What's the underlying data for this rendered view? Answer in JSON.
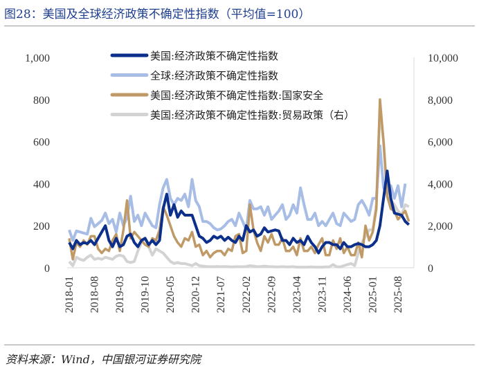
{
  "title": "图28：美国及全球经济政策不确定性指数（平均值=100）",
  "source": "资料来源：Wind，中国银河证券研究院",
  "chart_data": {
    "type": "line",
    "xlabel": "",
    "ylabel": "",
    "ylim_left": [
      0,
      1000
    ],
    "ylim_right": [
      0,
      10000
    ],
    "yticks_left": [
      "0",
      "200",
      "400",
      "600",
      "800",
      "1,000"
    ],
    "yticks_right": [
      "0",
      "2,000",
      "4,000",
      "6,000",
      "8,000",
      "10,000"
    ],
    "xticks": [
      "2018-01",
      "2018-08",
      "2019-03",
      "2019-10",
      "2020-05",
      "2020-12",
      "2021-07",
      "2022-02",
      "2022-09",
      "2023-04",
      "2023-11",
      "2024-06",
      "2025-01",
      "2025-08"
    ],
    "x_start": "2018-01",
    "frequency": "monthly",
    "grid": false,
    "legend_position": "top",
    "series": [
      {
        "name": "美国:经济政策不确定性指数",
        "axis": "left",
        "color": "#0b2f8a",
        "width": 4,
        "values": [
          120,
          90,
          130,
          110,
          120,
          115,
          130,
          110,
          140,
          170,
          200,
          130,
          100,
          140,
          100,
          110,
          150,
          160,
          120,
          100,
          130,
          140,
          110,
          130,
          110,
          130,
          280,
          350,
          250,
          300,
          240,
          270,
          250,
          250,
          250,
          200,
          150,
          140,
          120,
          130,
          150,
          140,
          150,
          130,
          145,
          130,
          120,
          150,
          130,
          200,
          170,
          180,
          150,
          160,
          190,
          170,
          175,
          180,
          175,
          130,
          130,
          110,
          140,
          120,
          130,
          110,
          150,
          120,
          100,
          70,
          100,
          120,
          120,
          110,
          110,
          90,
          120,
          100,
          100,
          110,
          115,
          110,
          100,
          100,
          110,
          130,
          200,
          330,
          460,
          330,
          260,
          255,
          250,
          220,
          205
        ]
      },
      {
        "name": "全球:经济政策不确定性指数",
        "axis": "left",
        "color": "#a8bde6",
        "width": 4,
        "values": [
          180,
          130,
          175,
          170,
          165,
          160,
          235,
          195,
          210,
          225,
          260,
          210,
          230,
          170,
          260,
          200,
          240,
          340,
          220,
          250,
          200,
          260,
          230,
          200,
          190,
          300,
          380,
          420,
          330,
          300,
          330,
          320,
          350,
          290,
          420,
          320,
          290,
          220,
          220,
          210,
          190,
          180,
          185,
          200,
          220,
          230,
          200,
          260,
          220,
          180,
          320,
          280,
          280,
          290,
          250,
          290,
          230,
          250,
          270,
          300,
          230,
          250,
          300,
          260,
          380,
          300,
          230,
          230,
          260,
          200,
          220,
          200,
          230,
          260,
          210,
          200,
          260,
          240,
          220,
          230,
          300,
          320,
          290,
          250,
          330,
          330,
          580,
          380,
          350,
          390,
          330,
          390,
          290,
          400,
          null
        ]
      },
      {
        "name": "美国:经济政策不确定性指数:国家安全",
        "axis": "left",
        "color": "#bf9a66",
        "width": 3.5,
        "values": [
          140,
          40,
          120,
          100,
          130,
          110,
          150,
          150,
          90,
          70,
          90,
          80,
          130,
          160,
          80,
          180,
          320,
          140,
          170,
          150,
          130,
          110,
          100,
          140,
          130,
          180,
          290,
          250,
          200,
          150,
          120,
          100,
          140,
          130,
          170,
          100,
          110,
          60,
          80,
          50,
          70,
          80,
          80,
          60,
          90,
          80,
          150,
          160,
          70,
          80,
          300,
          180,
          120,
          80,
          150,
          120,
          160,
          110,
          110,
          140,
          80,
          80,
          100,
          60,
          140,
          80,
          80,
          100,
          70,
          110,
          140,
          60,
          60,
          130,
          90,
          140,
          70,
          100,
          60,
          60,
          120,
          50,
          200,
          130,
          170,
          280,
          800,
          600,
          340,
          280,
          270,
          230,
          250,
          270,
          220
        ]
      },
      {
        "name": "美国:经济政策不确定性指数:贸易政策（右）",
        "axis": "right",
        "color": "#d3d3d3",
        "width": 4,
        "values": [
          300,
          100,
          500,
          400,
          350,
          500,
          600,
          400,
          450,
          400,
          500,
          450,
          400,
          550,
          600,
          550,
          300,
          250,
          300,
          800,
          1200,
          1400,
          1000,
          600,
          900,
          800,
          700,
          500,
          300,
          200,
          250,
          200,
          200,
          150,
          100,
          200,
          100,
          80,
          60,
          50,
          50,
          60,
          50,
          60,
          50,
          40,
          50,
          50,
          50,
          60,
          100,
          80,
          50,
          60,
          80,
          60,
          50,
          40,
          40,
          50,
          40,
          40,
          50,
          30,
          30,
          30,
          30,
          40,
          30,
          30,
          30,
          40,
          40,
          150,
          50,
          40,
          100,
          150,
          200,
          100,
          700,
          1200,
          1500,
          1800,
          1800,
          3000,
          7500,
          6000,
          3500,
          3200,
          3000,
          2700,
          2500,
          3000,
          2900
        ]
      }
    ]
  }
}
